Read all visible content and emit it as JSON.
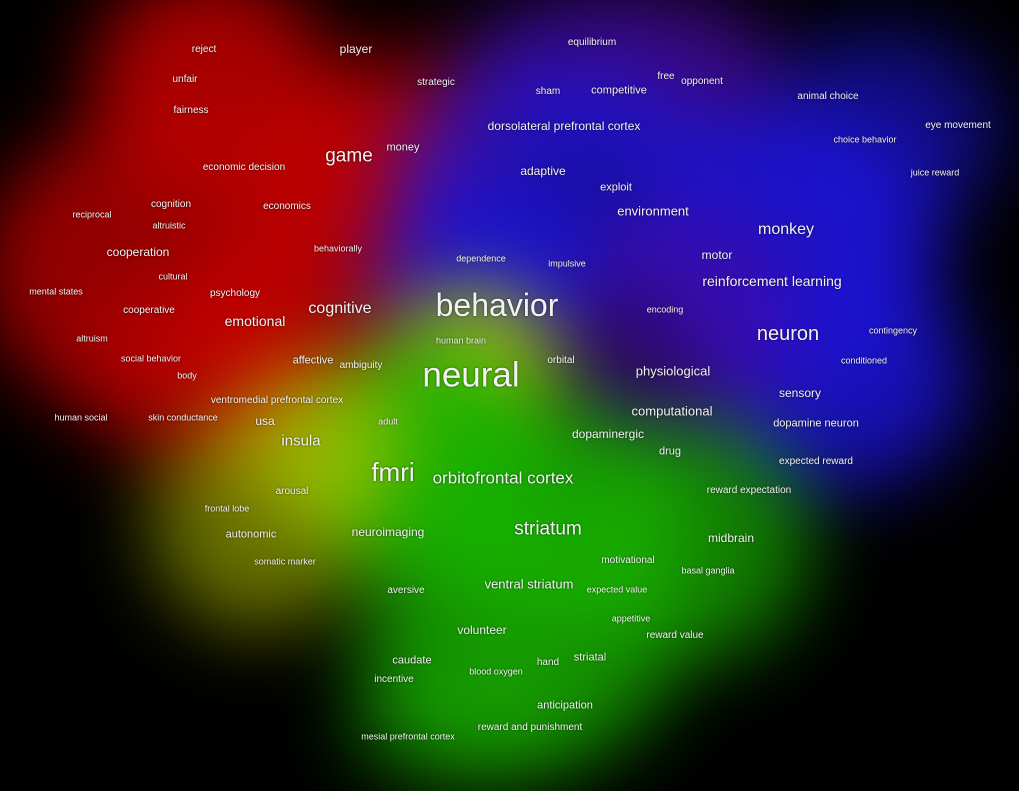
{
  "colors": {
    "background": "#000000",
    "cluster_red": "#c40000",
    "cluster_green": "#18b000",
    "cluster_blue": "#1c14d8",
    "cluster_yellow": "#b8c800",
    "cluster_purple": "#4a0aa0",
    "label": "#f2f2f2"
  },
  "terms": [
    "reject",
    "player",
    "equilibrium",
    "unfair",
    "strategic",
    "free",
    "opponent",
    "sham",
    "competitive",
    "animal choice",
    "fairness",
    "dorsolateral prefrontal cortex",
    "eye movement",
    "choice behavior",
    "game",
    "money",
    "economic decision",
    "adaptive",
    "juice reward",
    "exploit",
    "cognition",
    "economics",
    "environment",
    "reciprocal",
    "altruistic",
    "monkey",
    "cooperation",
    "behaviorally",
    "dependence",
    "motor",
    "impulsive",
    "cultural",
    "reinforcement learning",
    "mental states",
    "psychology",
    "behavior",
    "cooperative",
    "cognitive",
    "encoding",
    "emotional",
    "contingency",
    "neuron",
    "altruism",
    "human brain",
    "social behavior",
    "affective",
    "ambiguity",
    "orbital",
    "conditioned",
    "neural",
    "physiological",
    "body",
    "sensory",
    "ventromedial prefrontal cortex",
    "computational",
    "human social",
    "skin conductance",
    "usa",
    "adult",
    "dopamine neuron",
    "dopaminergic",
    "insula",
    "drug",
    "expected reward",
    "fmri",
    "orbitofrontal cortex",
    "arousal",
    "reward expectation",
    "frontal lobe",
    "striatum",
    "autonomic",
    "neuroimaging",
    "midbrain",
    "somatic marker",
    "motivational",
    "basal ganglia",
    "ventral striatum",
    "aversive",
    "expected value",
    "appetitive",
    "volunteer",
    "reward value",
    "caudate",
    "striatal",
    "hand",
    "blood oxygen",
    "incentive",
    "anticipation",
    "reward and punishment",
    "mesial prefrontal cortex"
  ]
}
